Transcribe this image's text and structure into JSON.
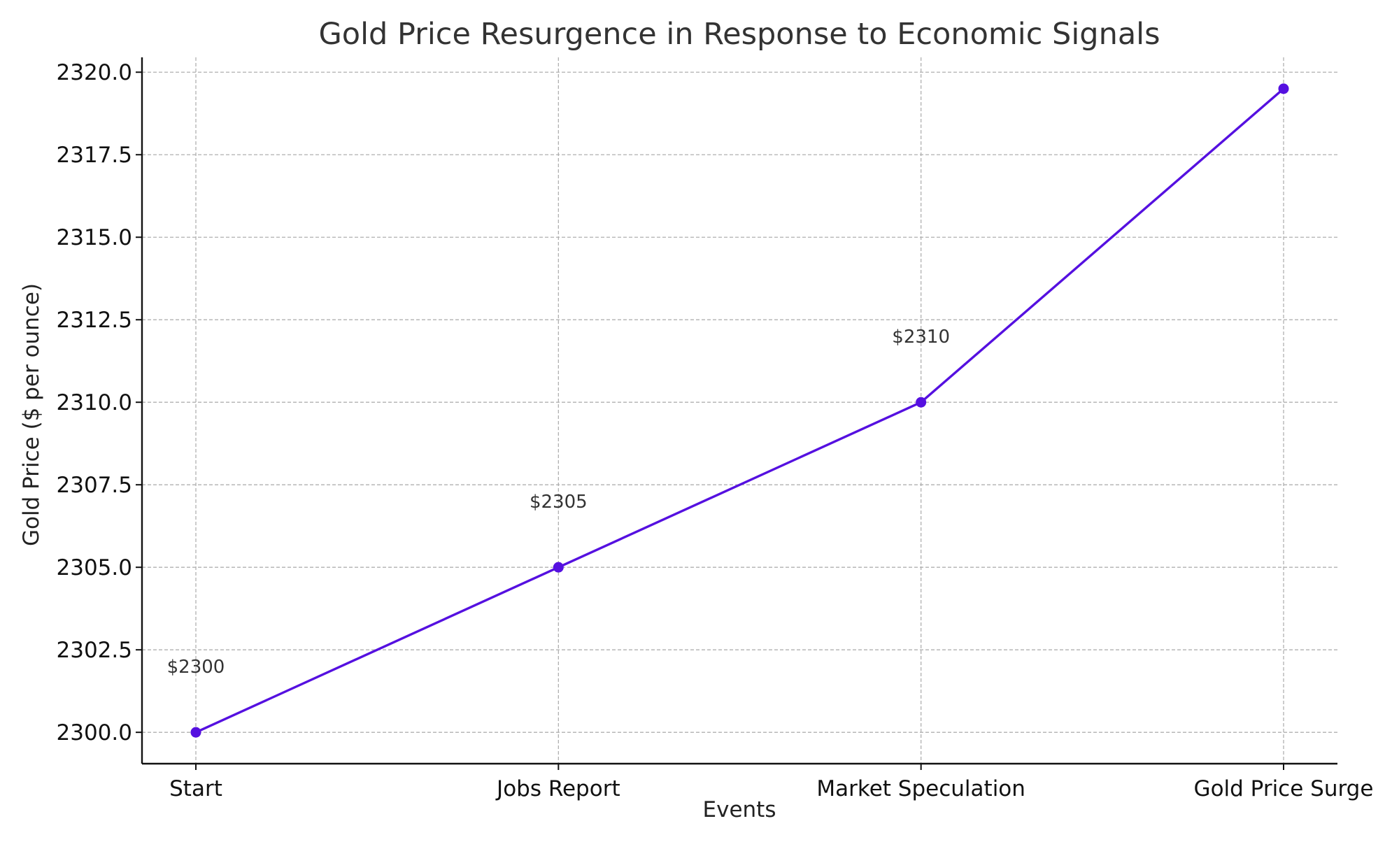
{
  "chart_data": {
    "type": "line",
    "title": "Gold Price Resurgence in Response to Economic Signals",
    "xlabel": "Events",
    "ylabel": "Gold Price ($ per ounce)",
    "categories": [
      "Start",
      "Jobs Report",
      "Market Speculation",
      "Gold Price Surge"
    ],
    "series": [
      {
        "values": [
          2300,
          2305,
          2310,
          2319.5
        ],
        "color": "#5510e0"
      }
    ],
    "data_labels": [
      "$2300",
      "$2305",
      "$2310",
      ""
    ],
    "ylim": [
      2299.05,
      2320.45
    ],
    "yticks": [
      2300.0,
      2302.5,
      2305.0,
      2307.5,
      2310.0,
      2312.5,
      2315.0,
      2317.5,
      2320.0
    ],
    "ytick_labels": [
      "2300.0",
      "2302.5",
      "2305.0",
      "2307.5",
      "2310.0",
      "2312.5",
      "2315.0",
      "2317.5",
      "2320.0"
    ],
    "grid": true,
    "marker": "circle"
  }
}
